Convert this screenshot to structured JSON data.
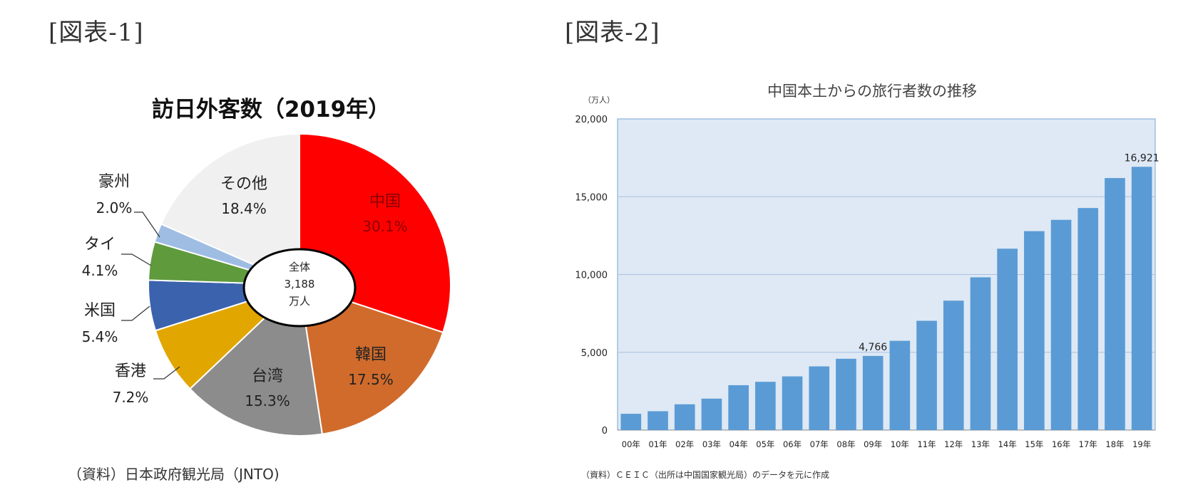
{
  "figures": {
    "fig1_label": "[図表-1]",
    "fig2_label": "[図表-2]"
  },
  "pie_source": "（資料）日本政府観光局（JNTO)",
  "bar_source": "（資料）ＣＥＩＣ（出所は中国国家観光局）のデータを元に作成",
  "chart_data": [
    {
      "type": "pie",
      "title": "訪日外客数（2019年）",
      "center_label": [
        "全体",
        "3,188",
        "万人"
      ],
      "slices": [
        {
          "name": "中国",
          "value": 30.1,
          "label": "30.1%",
          "color": "#ff0000",
          "text_color": "#8b0000"
        },
        {
          "name": "韓国",
          "value": 17.5,
          "label": "17.5%",
          "color": "#d06b2c",
          "text_color": "#222222"
        },
        {
          "name": "台湾",
          "value": 15.3,
          "label": "15.3%",
          "color": "#8c8c8c",
          "text_color": "#222222"
        },
        {
          "name": "香港",
          "value": 7.2,
          "label": "7.2%",
          "color": "#e2a600",
          "text_color": "#222222"
        },
        {
          "name": "米国",
          "value": 5.4,
          "label": "5.4%",
          "color": "#3b62ad",
          "text_color": "#222222"
        },
        {
          "name": "タイ",
          "value": 4.1,
          "label": "4.1%",
          "color": "#5f9a3c",
          "text_color": "#222222"
        },
        {
          "name": "豪州",
          "value": 2.0,
          "label": "2.0%",
          "color": "#9fbde3",
          "text_color": "#222222"
        },
        {
          "name": "その他",
          "value": 18.4,
          "label": "18.4%",
          "color": "#f0f0f0",
          "text_color": "#222222"
        }
      ]
    },
    {
      "type": "bar",
      "title": "中国本土からの旅行者数の推移",
      "ylabel": "（万人）",
      "ylim": [
        0,
        20000
      ],
      "yticks": [
        0,
        5000,
        10000,
        15000,
        20000
      ],
      "ytick_labels": [
        "0",
        "5,000",
        "10,000",
        "15,000",
        "20,000"
      ],
      "categories": [
        "00年",
        "01年",
        "02年",
        "03年",
        "04年",
        "05年",
        "06年",
        "07年",
        "08年",
        "09年",
        "10年",
        "11年",
        "12年",
        "13年",
        "14年",
        "15年",
        "16年",
        "17年",
        "18年",
        "19年"
      ],
      "values": [
        1047,
        1213,
        1660,
        2022,
        2885,
        3103,
        3452,
        4095,
        4584,
        4766,
        5739,
        7025,
        8318,
        9819,
        11659,
        12786,
        13513,
        14273,
        16199,
        16921
      ],
      "data_labels": {
        "9": "4,766",
        "19": "16,921"
      },
      "bar_color": "#5b9bd5",
      "plot_bg": "#dee9f5"
    }
  ]
}
